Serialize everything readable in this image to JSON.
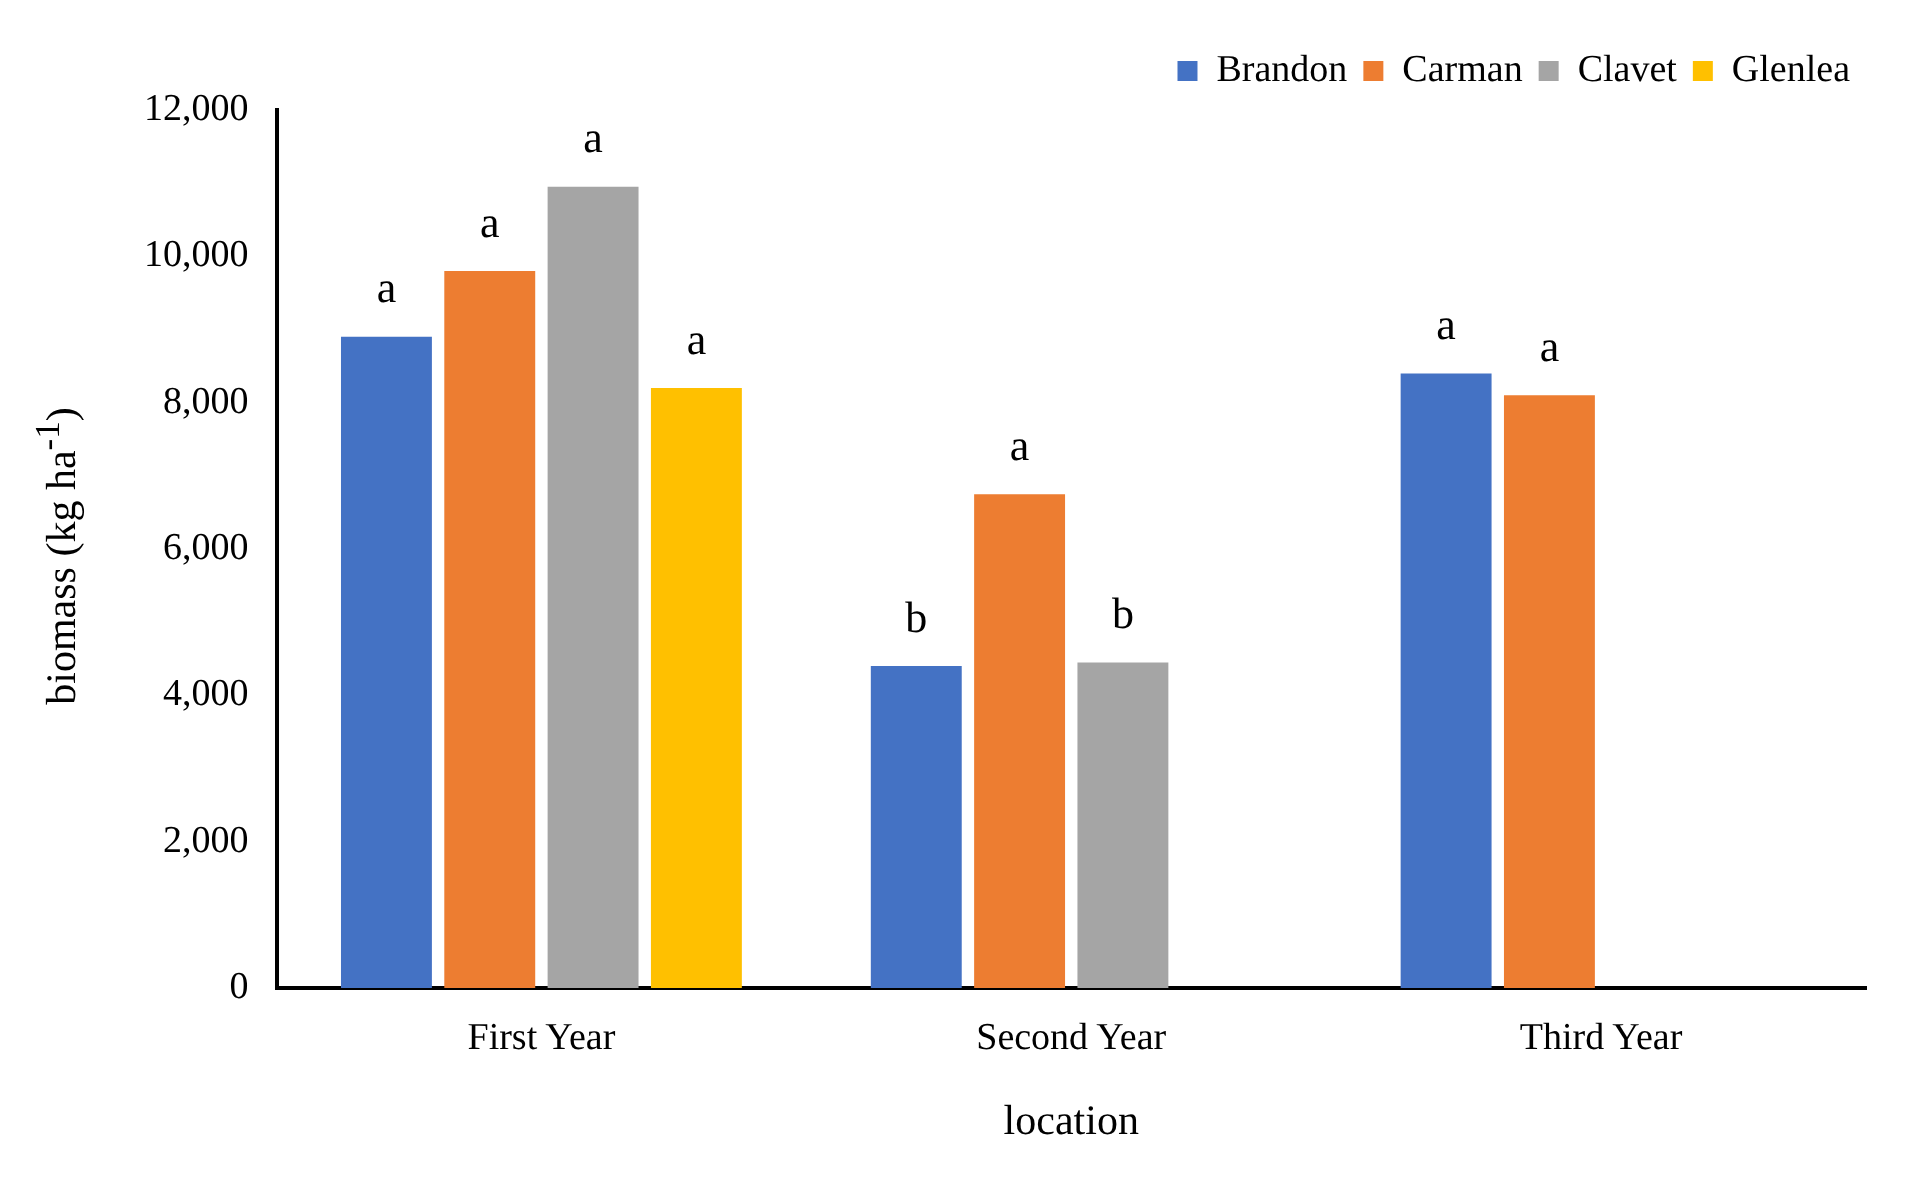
{
  "chart_data": {
    "type": "bar",
    "xlabel": "location",
    "ylabel": "biomass (kg ha$^{-1}$)",
    "categories": [
      "First Year",
      "Second Year",
      "Third Year"
    ],
    "series": [
      {
        "name": "Brandon",
        "color": "#4472c4",
        "values": [
          8900,
          4400,
          8400
        ],
        "value_labels": [
          "a",
          "b",
          "a"
        ]
      },
      {
        "name": "Carman",
        "color": "#ed7d31",
        "values": [
          9800,
          6750,
          8100
        ],
        "value_labels": [
          "a",
          "a",
          "a"
        ]
      },
      {
        "name": "Clavet",
        "color": "#a5a5a5",
        "values": [
          10950,
          4450,
          null
        ],
        "value_labels": [
          "a",
          "b",
          null
        ]
      },
      {
        "name": "Glenlea",
        "color": "#ffc000",
        "values": [
          8200,
          null,
          null
        ],
        "value_labels": [
          "a",
          null,
          null
        ]
      }
    ],
    "ylim": [
      0,
      12000
    ],
    "yticks": [
      {
        "value": 0,
        "label": "0"
      },
      {
        "value": 2000,
        "label": "2,000"
      },
      {
        "value": 4000,
        "label": "4,000"
      },
      {
        "value": 6000,
        "label": "6,000"
      },
      {
        "value": 8000,
        "label": "8,000"
      },
      {
        "value": 10000,
        "label": "10,000"
      },
      {
        "value": 12000,
        "label": "12,000"
      }
    ],
    "grid": false,
    "legend": "top right"
  }
}
